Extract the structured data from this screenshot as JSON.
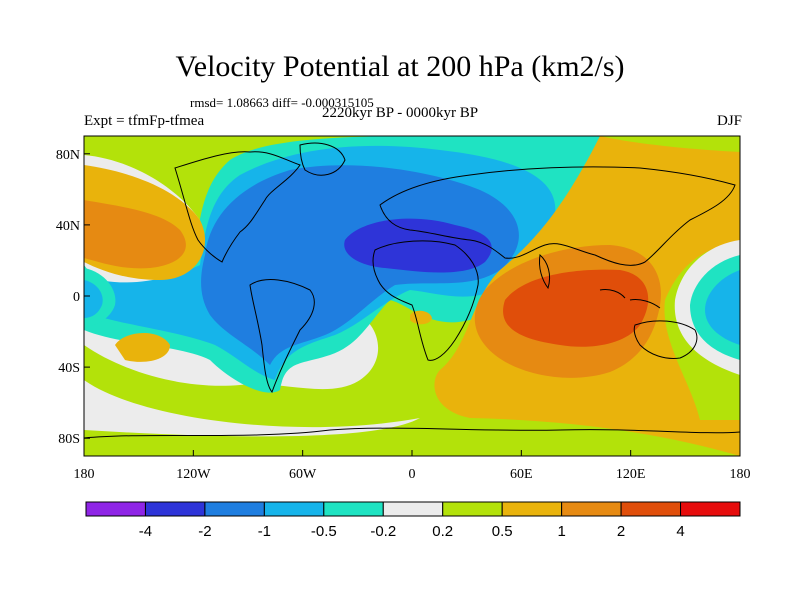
{
  "header": {
    "title": "Velocity Potential at 200 hPa (km2/s)",
    "stats": "rmsd= 1.08663 diff= -0.000315105",
    "experiment": "Expt = tfmFp-tfmea",
    "period": "2220kyr BP - 0000kyr BP",
    "season": "DJF"
  },
  "axes": {
    "x_ticks": [
      {
        "lon": -180,
        "label": "180"
      },
      {
        "lon": -120,
        "label": "120W"
      },
      {
        "lon": -60,
        "label": "60W"
      },
      {
        "lon": 0,
        "label": "0"
      },
      {
        "lon": 60,
        "label": "60E"
      },
      {
        "lon": 120,
        "label": "120E"
      },
      {
        "lon": 180,
        "label": "180"
      }
    ],
    "y_ticks": [
      {
        "lat": 80,
        "label": "80N"
      },
      {
        "lat": 40,
        "label": "40N"
      },
      {
        "lat": 0,
        "label": "0"
      },
      {
        "lat": -40,
        "label": "40S"
      },
      {
        "lat": -80,
        "label": "80S"
      }
    ]
  },
  "colorbar": {
    "colors": [
      "#8f25e6",
      "#2e34d8",
      "#1f7ee0",
      "#16b4ea",
      "#1fe3c2",
      "#ececec",
      "#b3e20a",
      "#e9b30c",
      "#e68a12",
      "#e04e0a",
      "#e60c0c"
    ],
    "labels": [
      "-4",
      "-2",
      "-1",
      "-0.5",
      "-0.2",
      "0.2",
      "0.5",
      "1",
      "2",
      "4"
    ]
  }
}
